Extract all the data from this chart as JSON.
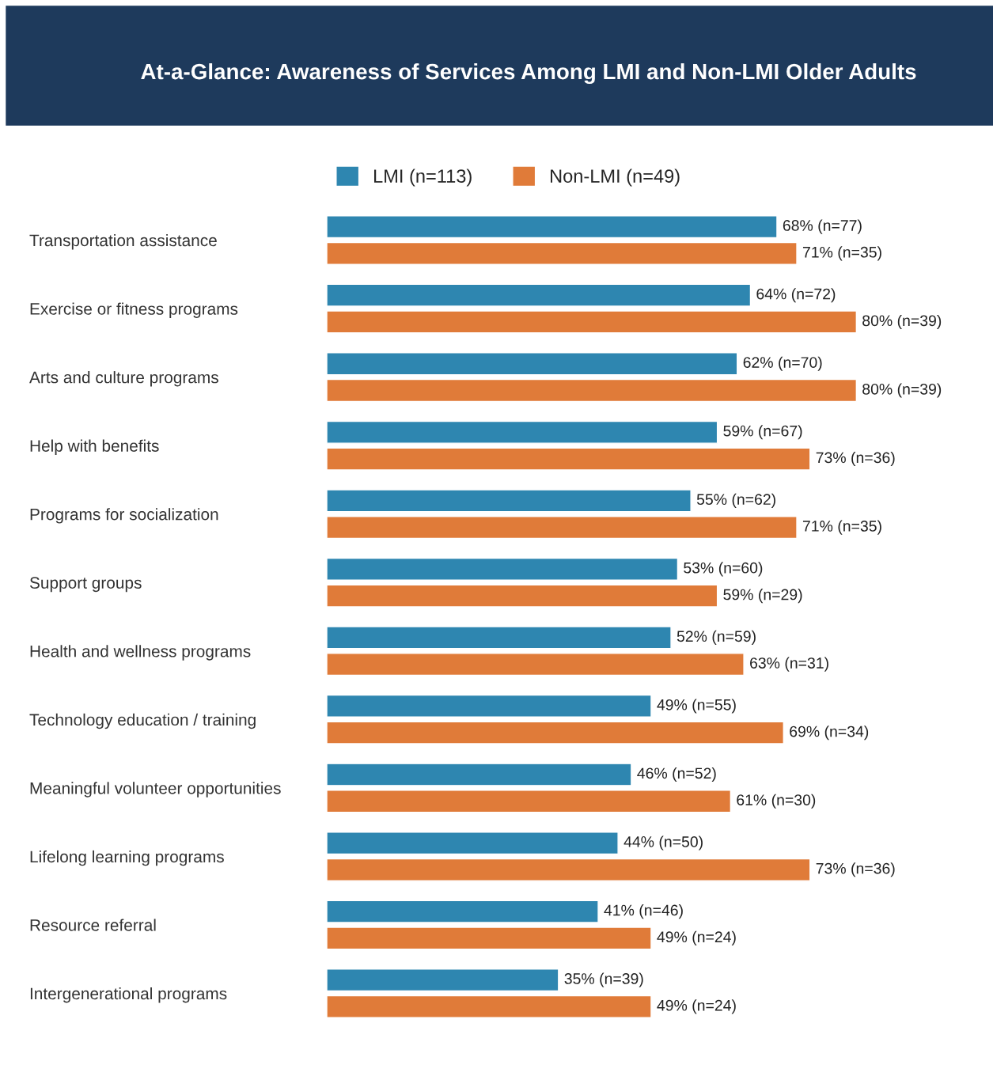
{
  "chart_data": {
    "type": "bar",
    "orientation": "horizontal",
    "title": "At-a-Glance: Awareness of Services Among LMI and Non-LMI Older Adults",
    "categories": [
      "Transportation assistance",
      "Exercise or fitness programs",
      "Arts and culture programs",
      "Help with benefits",
      "Programs for socialization",
      "Support groups",
      "Health and wellness programs",
      "Technology education / training",
      "Meaningful volunteer opportunities",
      "Lifelong learning programs",
      "Resource referral",
      "Intergenerational programs"
    ],
    "series": [
      {
        "name": "LMI (n=113)",
        "color": "#2e86b0",
        "values": [
          68,
          64,
          62,
          59,
          55,
          53,
          52,
          49,
          46,
          44,
          41,
          35
        ],
        "value_labels": [
          "68% (n=77)",
          "64% (n=72)",
          "62% (n=70)",
          "59% (n=67)",
          "55% (n=62)",
          "53% (n=60)",
          "52% (n=59)",
          "49% (n=55)",
          "46% (n=52)",
          "44% (n=50)",
          "41% (n=46)",
          "35% (n=39)"
        ]
      },
      {
        "name": "Non-LMI (n=49)",
        "color": "#e07b39",
        "values": [
          71,
          80,
          80,
          73,
          71,
          59,
          63,
          69,
          61,
          73,
          49,
          49
        ],
        "value_labels": [
          "71% (n=35)",
          "80% (n=39)",
          "80% (n=39)",
          "73% (n=36)",
          "71% (n=35)",
          "59% (n=29)",
          "63% (n=31)",
          "69% (n=34)",
          "61% (n=30)",
          "73% (n=36)",
          "49% (n=24)",
          "49% (n=24)"
        ]
      }
    ],
    "legend": "top",
    "grid": false,
    "tick_labels": "y"
  }
}
